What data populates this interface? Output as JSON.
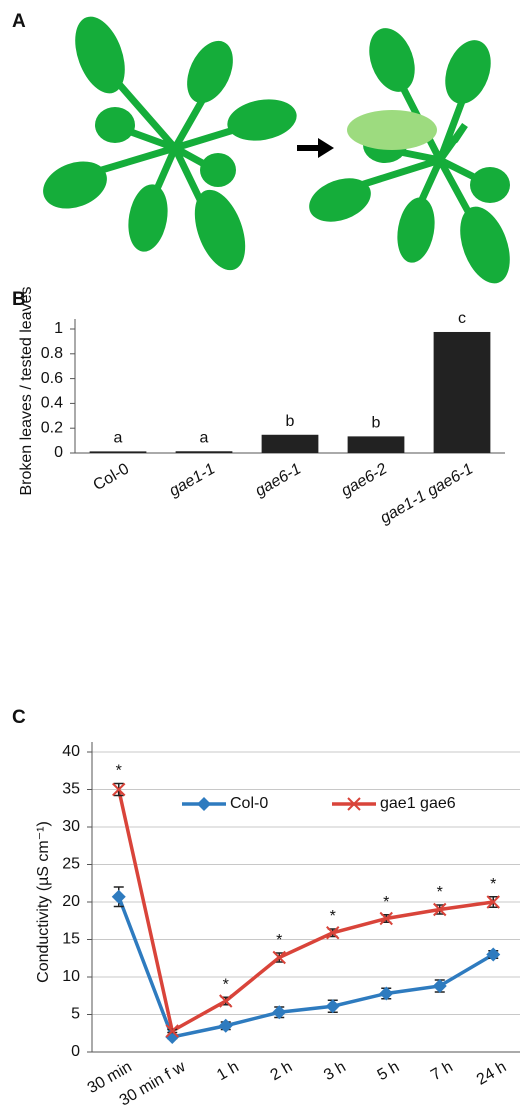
{
  "panels": [
    "A",
    "B",
    "C"
  ],
  "chart_data": [
    {
      "type": "bar",
      "ylabel": "Broken leaves / tested leaves",
      "categories": [
        "Col-0",
        "gae1-1",
        "gae6-1",
        "gae6-2",
        "gae1-1 gae6-1"
      ],
      "values": [
        0.013,
        0.014,
        0.147,
        0.134,
        0.976
      ],
      "annotations": [
        "a",
        "a",
        "b",
        "b",
        "c"
      ],
      "color": "#222222",
      "ylim": [
        0,
        1
      ],
      "yticks": [
        0,
        0.2,
        0.4,
        0.6,
        0.8,
        1
      ],
      "grid": false
    },
    {
      "type": "line",
      "ylabel": "Conductivity (µS cm⁻¹)",
      "categories": [
        "30 min",
        "30 min f w",
        "1 h",
        "2 h",
        "3 h",
        "5 h",
        "7 h",
        "24 h"
      ],
      "series": [
        {
          "name": "Col-0",
          "color": "#2e7bbf",
          "marker": "diamond",
          "values": [
            20.7,
            2,
            3.5,
            5.3,
            6.1,
            7.8,
            8.8,
            13
          ],
          "errors": [
            1.3,
            0.2,
            0.5,
            0.7,
            0.8,
            0.7,
            0.8,
            0.5
          ]
        },
        {
          "name": "gae1 gae6",
          "color": "#d9443a",
          "marker": "x",
          "values": [
            35,
            2.8,
            6.8,
            12.6,
            15.9,
            17.8,
            19,
            20
          ],
          "errors": [
            0.8,
            0.2,
            0.5,
            0.6,
            0.5,
            0.5,
            0.6,
            0.7
          ]
        }
      ],
      "significance": [
        "*",
        null,
        "*",
        "*",
        "*",
        "*",
        "*",
        "*"
      ],
      "ylim": [
        0,
        40
      ],
      "yticks": [
        0,
        5,
        10,
        15,
        20,
        25,
        30,
        35,
        40
      ],
      "grid": true,
      "legend": "upper center"
    }
  ]
}
